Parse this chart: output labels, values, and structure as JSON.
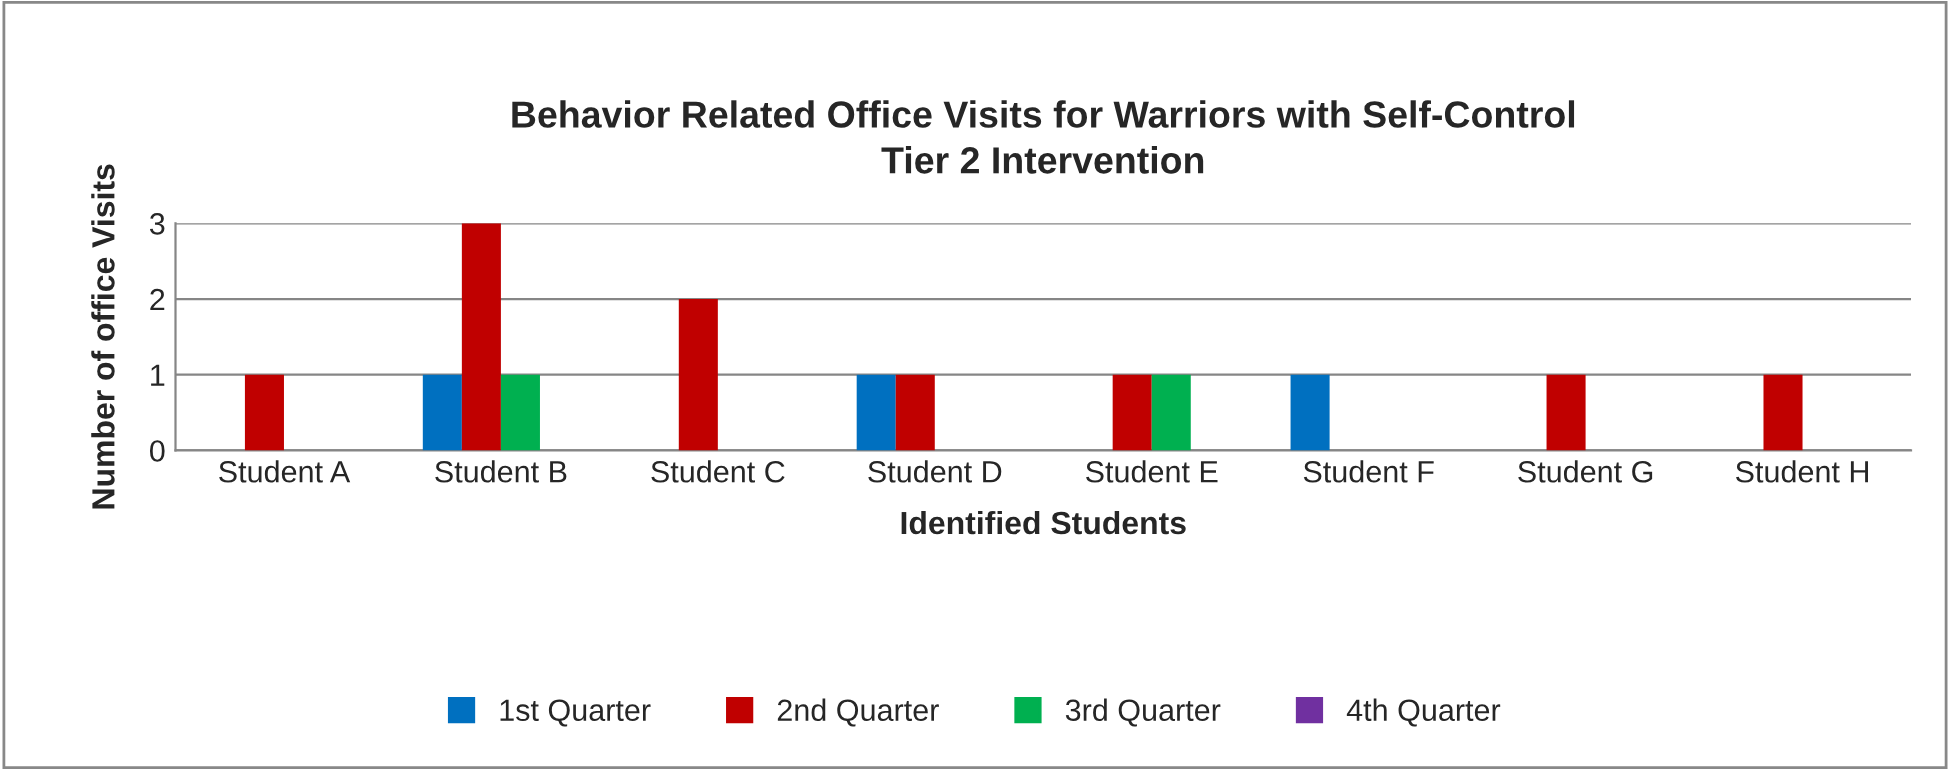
{
  "chart_data": {
    "type": "bar",
    "title": "Behavior Related Office Visits for Warriors with Self-Control\nTier 2 Intervention",
    "xlabel": "Identified Students",
    "ylabel": "Number of office Visits",
    "categories": [
      "Student A",
      "Student B",
      "Student C",
      "Student D",
      "Student E",
      "Student F",
      "Student G",
      "Student H"
    ],
    "series": [
      {
        "name": "1st Quarter",
        "color": "#0070c0",
        "values": [
          0,
          1,
          0,
          1,
          0,
          1,
          0,
          0
        ]
      },
      {
        "name": "2nd Quarter",
        "color": "#c00000",
        "values": [
          1,
          3,
          2,
          1,
          1,
          0,
          1,
          1
        ]
      },
      {
        "name": "3rd Quarter",
        "color": "#00b050",
        "values": [
          0,
          1,
          0,
          0,
          1,
          0,
          0,
          0
        ]
      },
      {
        "name": "4th Quarter",
        "color": "#7030a0",
        "values": [
          0,
          0,
          0,
          0,
          0,
          0,
          0,
          0
        ]
      }
    ],
    "ylim": [
      0,
      3
    ],
    "yticks": [
      0,
      1,
      2,
      3
    ],
    "grid": "y",
    "legend": "bottom"
  }
}
